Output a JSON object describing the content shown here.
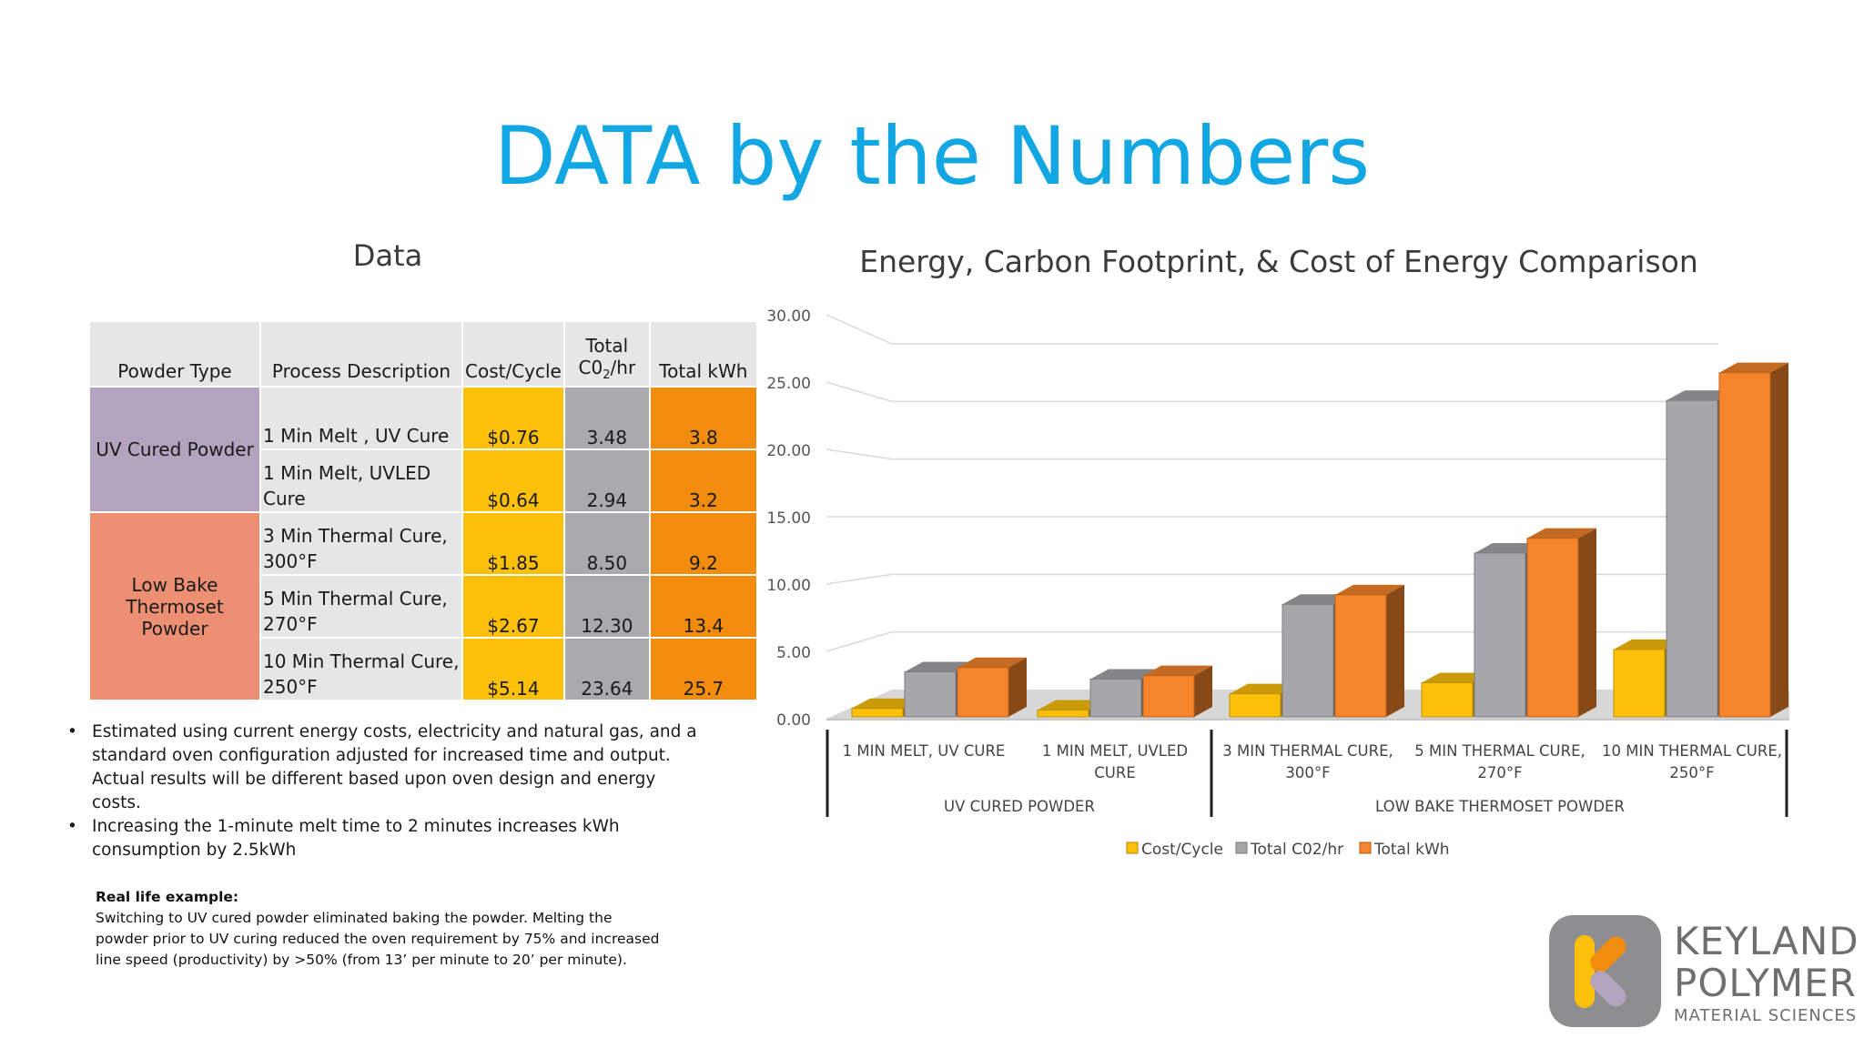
{
  "slide": {
    "title": "DATA by the Numbers"
  },
  "table": {
    "heading": "Data",
    "headers": {
      "powder_type": "Powder Type",
      "process": "Process Description",
      "cost": "Cost/Cycle",
      "co2_line1": "Total",
      "co2_line2a": "C0",
      "co2_sub": "2",
      "co2_line2b": "/hr",
      "kwh": "Total kWh"
    },
    "groups": [
      {
        "label": "UV Cured Powder",
        "rows": [
          {
            "process_l1": "1 Min Melt , UV Cure",
            "process_l2": "",
            "cost": "$0.76",
            "co2": "3.48",
            "kwh": "3.8"
          },
          {
            "process_l1": "1 Min Melt, UVLED",
            "process_l2": "Cure",
            "cost": "$0.64",
            "co2": "2.94",
            "kwh": "3.2"
          }
        ]
      },
      {
        "label_l1": "Low Bake",
        "label_l2": "Thermoset Powder",
        "rows": [
          {
            "process_l1": "3 Min Thermal Cure,",
            "process_l2": "300°F",
            "cost": "$1.85",
            "co2": "8.50",
            "kwh": "9.2"
          },
          {
            "process_l1": "5 Min Thermal Cure,",
            "process_l2": "270°F",
            "cost": "$2.67",
            "co2": "12.30",
            "kwh": "13.4"
          },
          {
            "process_l1": "10 Min Thermal Cure,",
            "process_l2": "250°F",
            "cost": "$5.14",
            "co2": "23.64",
            "kwh": "25.7"
          }
        ]
      }
    ]
  },
  "notes": [
    {
      "l1": "Estimated using current energy costs, electricity and natural gas, and a",
      "l2": "standard oven configuration adjusted for increased time and output.",
      "l3": "Actual results will be different based  upon oven design and energy costs."
    },
    {
      "l1": "Increasing the 1-minute melt time to 2 minutes increases kWh",
      "l2": "consumption by 2.5kWh"
    }
  ],
  "example": {
    "title": "Real life example:",
    "l1": "Switching to UV cured powder eliminated baking the powder. Melting the",
    "l2": "powder prior to UV curing reduced the oven requirement by 75% and increased",
    "l3": "line speed (productivity) by >50% (from 13’ per minute to 20’ per minute)."
  },
  "chart_data": {
    "type": "bar",
    "title": "Energy, Carbon Footprint, & Cost of Energy Comparison",
    "ylim": [
      0,
      30
    ],
    "yticks": [
      "0.00",
      "5.00",
      "10.00",
      "15.00",
      "20.00",
      "25.00",
      "30.00"
    ],
    "categories": [
      {
        "l1": "1 MIN MELT, UV CURE",
        "l2": ""
      },
      {
        "l1": "1 MIN MELT, UVLED",
        "l2": "CURE"
      },
      {
        "l1": "3 MIN THERMAL CURE,",
        "l2": "300°F"
      },
      {
        "l1": "5 MIN THERMAL CURE,",
        "l2": "270°F"
      },
      {
        "l1": "10 MIN THERMAL CURE,",
        "l2": "250°F"
      }
    ],
    "groups": [
      "UV CURED POWDER",
      "LOW BAKE THERMOSET POWDER"
    ],
    "series": [
      {
        "name": "Cost/Cycle",
        "color": "#fcc00b",
        "values": [
          0.76,
          0.64,
          1.85,
          2.67,
          5.14
        ]
      },
      {
        "name": "Total C02/hr",
        "color": "#a6a6ab",
        "values": [
          3.48,
          2.94,
          8.5,
          12.3,
          23.64
        ]
      },
      {
        "name": "Total kWh",
        "color": "#f5842a",
        "values": [
          3.8,
          3.2,
          9.2,
          13.4,
          25.7
        ]
      }
    ],
    "legend": "bottom"
  },
  "logo": {
    "line1": "KEYLAND",
    "line2": "POLYMER",
    "line3": "MATERIAL SCIENCES"
  }
}
